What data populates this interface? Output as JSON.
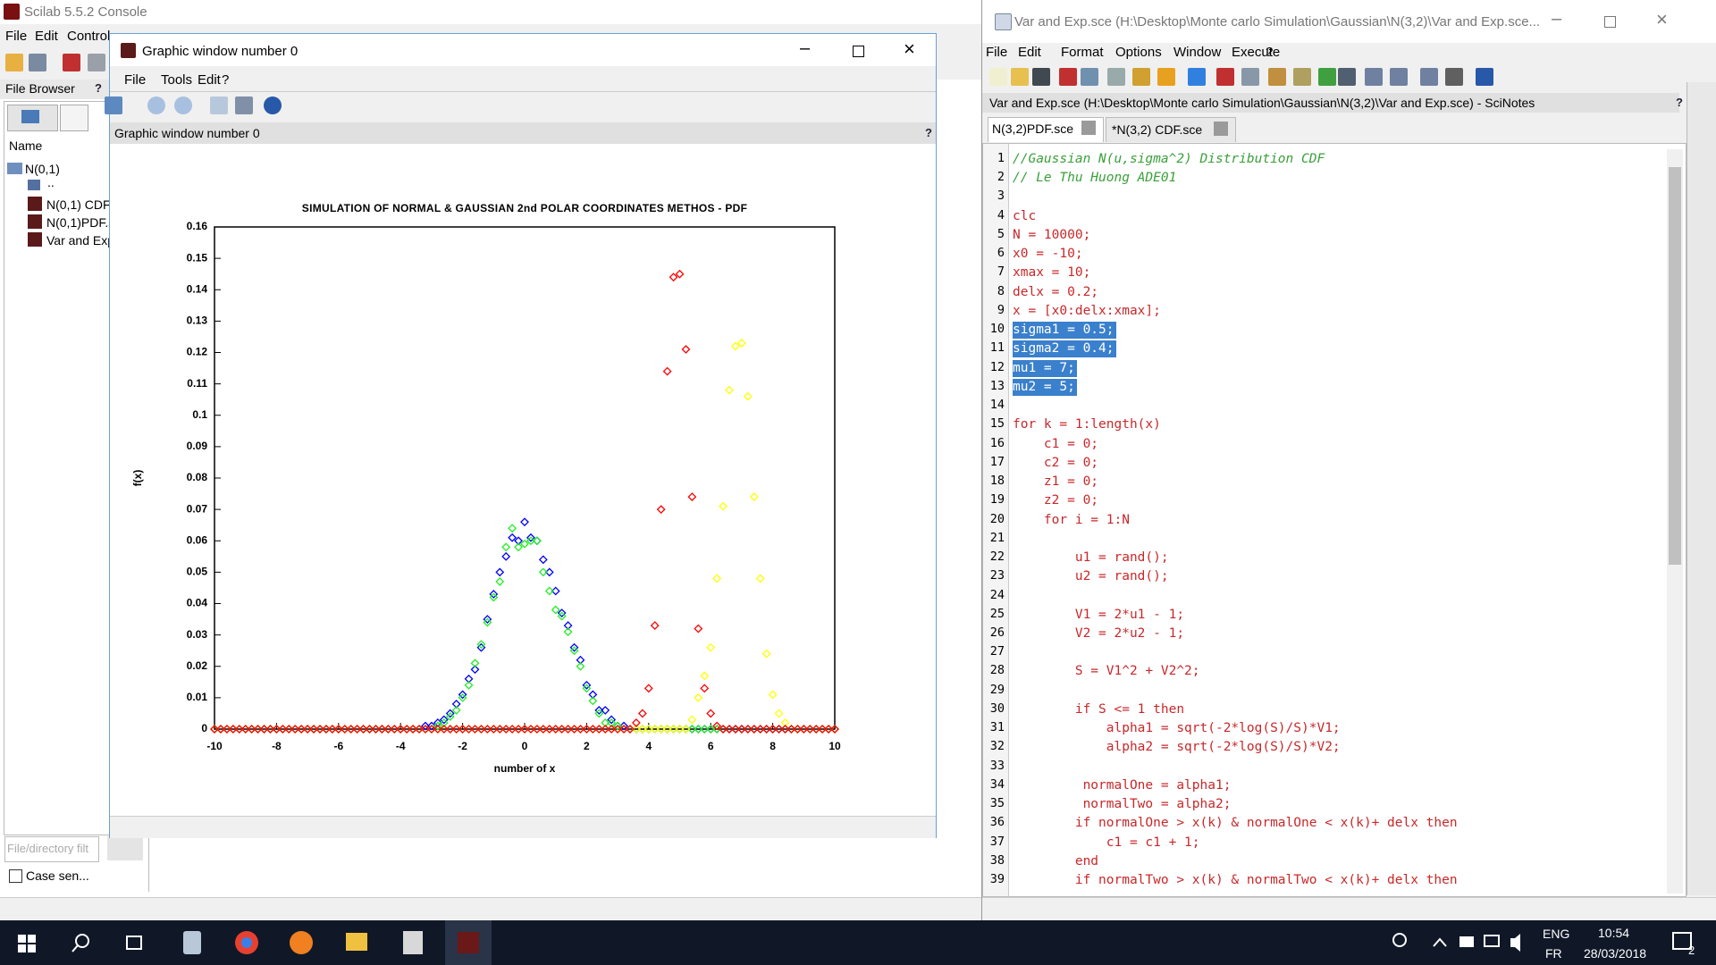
{
  "console": {
    "title": "Scilab 5.5.2 Console",
    "menu": [
      "File",
      "Edit",
      "Control"
    ],
    "file_browser": {
      "label": "File Browser",
      "help": "?",
      "column": "Name",
      "tree": [
        "N(0,1)",
        "..",
        "N(0,1) CDF",
        "N(0,1)PDF.s",
        "Var and Exp"
      ],
      "filter": "File/directory filt",
      "case_sensitive": "Case sen..."
    }
  },
  "graphic_window": {
    "title": "Graphic window number 0",
    "menu": [
      "File",
      "Tools",
      "Edit",
      "?"
    ],
    "info": "Graphic window number 0",
    "help": "?"
  },
  "chart_data": {
    "type": "scatter",
    "title": "SIMULATION OF NORMAL & GAUSSIAN 2nd POLAR COORDINATES METHOS - PDF",
    "x_label": "number of x",
    "y_label": "f(x)",
    "xlim": [
      -10,
      10
    ],
    "ylim": [
      0,
      0.16
    ],
    "xticks": [
      -10,
      -8,
      -6,
      -4,
      -2,
      0,
      2,
      4,
      6,
      8,
      10
    ],
    "yticks": [
      0,
      0.01,
      0.02,
      0.03,
      0.04,
      0.05,
      0.06,
      0.07,
      0.08,
      0.09,
      0.1,
      0.11,
      0.12,
      0.13,
      0.14,
      0.15,
      0.16
    ],
    "marker": "diamond",
    "x": [
      -10,
      -9.8,
      -9.6,
      -9.4,
      -9.2,
      -9,
      -8.8,
      -8.6,
      -8.4,
      -8.2,
      -8,
      -7.8,
      -7.6,
      -7.4,
      -7.2,
      -7,
      -6.8,
      -6.6,
      -6.4,
      -6.2,
      -6,
      -5.8,
      -5.6,
      -5.4,
      -5.2,
      -5,
      -4.8,
      -4.6,
      -4.4,
      -4.2,
      -4,
      -3.8,
      -3.6,
      -3.4,
      -3.2,
      -3,
      -2.8,
      -2.6,
      -2.4,
      -2.2,
      -2,
      -1.8,
      -1.6,
      -1.4,
      -1.2,
      -1,
      -0.8,
      -0.6,
      -0.4,
      -0.2,
      0,
      0.2,
      0.4,
      0.6,
      0.8,
      1,
      1.2,
      1.4,
      1.6,
      1.8,
      2,
      2.2,
      2.4,
      2.6,
      2.8,
      3,
      3.2,
      3.4,
      3.6,
      3.8,
      4,
      4.2,
      4.4,
      4.6,
      4.8,
      5,
      5.2,
      5.4,
      5.6,
      5.8,
      6,
      6.2,
      6.4,
      6.6,
      6.8,
      7,
      7.2,
      7.4,
      7.6,
      7.8,
      8,
      8.2,
      8.4,
      8.6,
      8.8,
      9,
      9.2,
      9.4,
      9.6,
      9.8,
      10
    ],
    "series": [
      {
        "color": "#0000ff",
        "values": [
          0,
          0,
          0,
          0,
          0,
          0,
          0,
          0,
          0,
          0,
          0,
          0,
          0,
          0,
          0,
          0,
          0,
          0,
          0,
          0,
          0,
          0,
          0,
          0,
          0,
          0,
          0,
          0,
          0,
          0,
          0,
          0,
          0,
          0,
          0.001,
          0.001,
          0.002,
          0.003,
          0.005,
          0.008,
          0.011,
          0.016,
          0.019,
          0.026,
          0.035,
          0.043,
          0.05,
          0.055,
          0.061,
          0.06,
          0.066,
          0.061,
          0.06,
          0.054,
          0.05,
          0.044,
          0.037,
          0.033,
          0.026,
          0.022,
          0.014,
          0.011,
          0.006,
          0.006,
          0.003,
          0.001,
          0.001,
          0,
          0,
          0,
          0,
          0,
          0,
          0,
          0,
          0,
          0,
          0,
          0,
          0,
          0,
          0,
          0,
          0,
          0,
          0,
          0,
          0,
          0,
          0,
          0,
          0,
          0,
          0,
          0,
          0,
          0,
          0,
          0,
          0,
          0
        ]
      },
      {
        "color": "#22ee22",
        "values": [
          0,
          0,
          0,
          0,
          0,
          0,
          0,
          0,
          0,
          0,
          0,
          0,
          0,
          0,
          0,
          0,
          0,
          0,
          0,
          0,
          0,
          0,
          0,
          0,
          0,
          0,
          0,
          0,
          0,
          0,
          0,
          0,
          0,
          0,
          0,
          0,
          0.001,
          0.002,
          0.004,
          0.006,
          0.01,
          0.014,
          0.021,
          0.027,
          0.034,
          0.042,
          0.047,
          0.058,
          0.064,
          0.058,
          0.059,
          0.06,
          0.06,
          0.05,
          0.044,
          0.038,
          0.036,
          0.031,
          0.025,
          0.02,
          0.013,
          0.009,
          0.005,
          0.002,
          0.002,
          0.001,
          0,
          0,
          0,
          0,
          0,
          0,
          0,
          0,
          0,
          0,
          0,
          0,
          0,
          0,
          0,
          0,
          0,
          0,
          0,
          0,
          0,
          0,
          0,
          0,
          0,
          0,
          0,
          0,
          0,
          0,
          0,
          0,
          0,
          0,
          0
        ]
      },
      {
        "color": "#ffff00",
        "values": [
          0,
          0,
          0,
          0,
          0,
          0,
          0,
          0,
          0,
          0,
          0,
          0,
          0,
          0,
          0,
          0,
          0,
          0,
          0,
          0,
          0,
          0,
          0,
          0,
          0,
          0,
          0,
          0,
          0,
          0,
          0,
          0,
          0,
          0,
          0,
          0,
          0,
          0,
          0,
          0,
          0,
          0,
          0,
          0,
          0,
          0,
          0,
          0,
          0,
          0,
          0,
          0,
          0,
          0,
          0,
          0,
          0,
          0,
          0,
          0,
          0,
          0,
          0,
          0,
          0,
          0,
          0,
          0,
          0,
          0,
          0,
          0,
          0,
          0,
          0,
          0,
          0,
          0.003,
          0.01,
          0.017,
          0.026,
          0.048,
          0.071,
          0.108,
          0.122,
          0.123,
          0.106,
          0.074,
          0.048,
          0.024,
          0.011,
          0.005,
          0.002,
          0,
          0,
          0,
          0,
          0,
          0,
          0,
          0
        ]
      },
      {
        "color": "#ff0000",
        "values": [
          0,
          0,
          0,
          0,
          0,
          0,
          0,
          0,
          0,
          0,
          0,
          0,
          0,
          0,
          0,
          0,
          0,
          0,
          0,
          0,
          0,
          0,
          0,
          0,
          0,
          0,
          0,
          0,
          0,
          0,
          0,
          0,
          0,
          0,
          0,
          0,
          0,
          0,
          0,
          0,
          0,
          0,
          0,
          0,
          0,
          0,
          0,
          0,
          0,
          0,
          0,
          0,
          0,
          0,
          0,
          0,
          0,
          0,
          0,
          0,
          0,
          0,
          0,
          0,
          0,
          0,
          0,
          0,
          0.002,
          0.005,
          0.013,
          0.033,
          0.07,
          0.114,
          0.144,
          0.145,
          0.121,
          0.074,
          0.032,
          0.013,
          0.005,
          0.001,
          0,
          0,
          0,
          0,
          0,
          0,
          0,
          0,
          0,
          0,
          0,
          0,
          0,
          0,
          0,
          0,
          0,
          0,
          0
        ]
      }
    ]
  },
  "scinotes": {
    "title": "Var and Exp.sce (H:\\Desktop\\Monte carlo Simulation\\Gaussian\\N(3,2)\\Var and Exp.sce...",
    "menu": [
      "File",
      "Edit",
      "Format",
      "Options",
      "Window",
      "Execute",
      "?"
    ],
    "path": "Var and Exp.sce (H:\\Desktop\\Monte carlo Simulation\\Gaussian\\N(3,2)\\Var and Exp.sce) - SciNotes",
    "help": "?",
    "tabs": [
      "N(3,2)PDF.sce",
      "*N(3,2) CDF.sce"
    ],
    "lines": [
      {
        "number": 1,
        "code": "//Gaussian N(u,sigma^2) Distribution CDF",
        "comment": true
      },
      {
        "number": 2,
        "code": "// Le Thu Huong ADE01",
        "comment": true
      },
      {
        "number": 3
      },
      {
        "number": 4,
        "code": "clc"
      },
      {
        "number": 5,
        "code": "N = 10000;"
      },
      {
        "number": 6,
        "code": "x0 = -10;"
      },
      {
        "number": 7,
        "code": "xmax = 10;"
      },
      {
        "number": 8,
        "code": "delx = 0.2;"
      },
      {
        "number": 9,
        "code": "x = [x0:delx:xmax];"
      },
      {
        "number": 10,
        "code": "sigma1 = 0.5;",
        "selected": true
      },
      {
        "number": 11,
        "code": "sigma2 = 0.4;",
        "selected": true
      },
      {
        "number": 12,
        "code": "mu1 = 7;",
        "selected": true
      },
      {
        "number": 13,
        "code": "mu2 = 5;",
        "selected": true
      },
      {
        "number": 14
      },
      {
        "number": 15,
        "code": "for k = 1:length(x)"
      },
      {
        "number": 16,
        "code": "    c1 = 0;"
      },
      {
        "number": 17,
        "code": "    c2 = 0;"
      },
      {
        "number": 18,
        "code": "    z1 = 0;"
      },
      {
        "number": 19,
        "code": "    z2 = 0;"
      },
      {
        "number": 20,
        "code": "    for i = 1:N"
      },
      {
        "number": 21
      },
      {
        "number": 22,
        "code": "        u1 = rand();"
      },
      {
        "number": 23,
        "code": "        u2 = rand();"
      },
      {
        "number": 24
      },
      {
        "number": 25,
        "code": "        V1 = 2*u1 - 1;"
      },
      {
        "number": 26,
        "code": "        V2 = 2*u2 - 1;"
      },
      {
        "number": 27
      },
      {
        "number": 28,
        "code": "        S = V1^2 + V2^2;"
      },
      {
        "number": 29
      },
      {
        "number": 30,
        "code": "        if S <= 1 then"
      },
      {
        "number": 31,
        "code": "            alpha1 = sqrt(-2*log(S)/S)*V1;"
      },
      {
        "number": 32,
        "code": "            alpha2 = sqrt(-2*log(S)/S)*V2;"
      },
      {
        "number": 33
      },
      {
        "number": 34,
        "code": "         normalOne = alpha1;"
      },
      {
        "number": 35,
        "code": "         normalTwo = alpha2;"
      },
      {
        "number": 36,
        "code": "        if normalOne > x(k) & normalOne < x(k)+ delx then"
      },
      {
        "number": 37,
        "code": "            c1 = c1 + 1;"
      },
      {
        "number": 38,
        "code": "        end"
      },
      {
        "number": 39,
        "code": "        if normalTwo > x(k) & normalTwo < x(k)+ delx then"
      }
    ]
  },
  "taskbar": {
    "language": "ENG",
    "layout": "FR",
    "time": "10:54",
    "date": "28/03/2018",
    "notifications": "2"
  }
}
